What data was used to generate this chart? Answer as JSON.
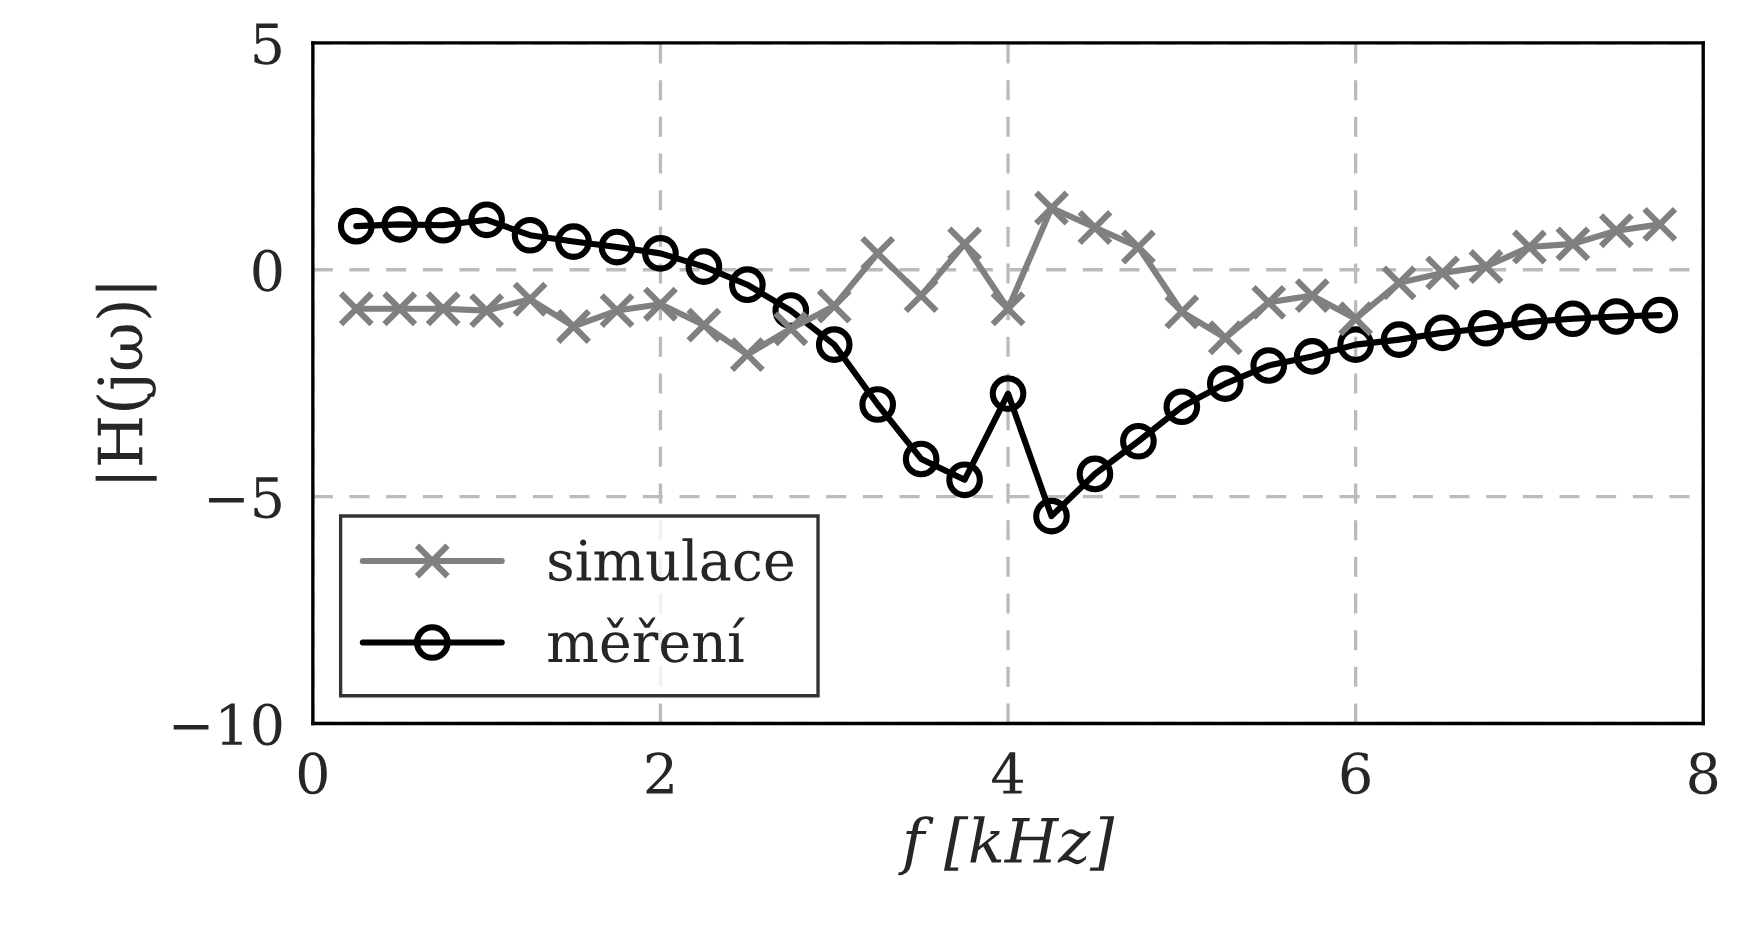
{
  "chart_data": {
    "type": "line",
    "xlabel": "f [kHz]",
    "ylabel": "|H(jω)|",
    "x": [
      0.25,
      0.5,
      0.75,
      1.0,
      1.25,
      1.5,
      1.75,
      2.0,
      2.25,
      2.5,
      2.75,
      3.0,
      3.25,
      3.5,
      3.75,
      4.0,
      4.25,
      4.5,
      4.75,
      5.0,
      5.25,
      5.5,
      5.75,
      6.0,
      6.25,
      6.5,
      6.75,
      7.0,
      7.25,
      7.5,
      7.75
    ],
    "series": [
      {
        "name": "simulace",
        "color": "#808080",
        "marker": "cross",
        "values": [
          -0.86,
          -0.86,
          -0.86,
          -0.9,
          -0.65,
          -1.25,
          -0.9,
          -0.76,
          -1.22,
          -1.87,
          -1.3,
          -0.8,
          0.36,
          -0.57,
          0.57,
          -0.86,
          1.36,
          0.93,
          0.5,
          -0.93,
          -1.5,
          -0.72,
          -0.57,
          -1.08,
          -0.29,
          -0.07,
          0.07,
          0.5,
          0.57,
          0.86,
          1.0
        ]
      },
      {
        "name": "měření",
        "color": "#000000",
        "marker": "circle",
        "values": [
          0.96,
          1.0,
          0.98,
          1.1,
          0.76,
          0.62,
          0.5,
          0.36,
          0.07,
          -0.33,
          -0.9,
          -1.65,
          -2.97,
          -4.17,
          -4.63,
          -2.73,
          -5.43,
          -4.5,
          -3.78,
          -3.02,
          -2.51,
          -2.11,
          -1.91,
          -1.65,
          -1.54,
          -1.39,
          -1.29,
          -1.15,
          -1.08,
          -1.03,
          -1.0
        ]
      }
    ],
    "xlim": [
      0,
      8
    ],
    "xticks": [
      0,
      2,
      4,
      6,
      8
    ],
    "ylim": [
      -10,
      5
    ],
    "yticks": [
      {
        "value": -10,
        "label": "−10"
      },
      {
        "value": -5,
        "label": "−5"
      },
      0,
      5
    ],
    "grid": true,
    "legend": "bottom left",
    "line_style": "solid"
  }
}
